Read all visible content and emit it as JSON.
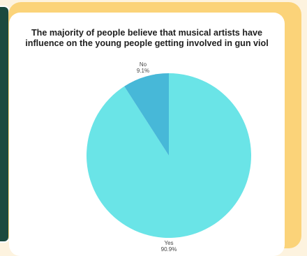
{
  "colors": {
    "page_background": "#fdf3df",
    "frame": "#fbd379",
    "side_panel": "#1b4a3e",
    "card": "#ffffff",
    "yes_slice": "#6ae4e7",
    "no_slice": "#47b8d8",
    "title_text": "#1e1e1e",
    "label_text": "#444444"
  },
  "chart_data": {
    "type": "pie",
    "title_lines": [
      "The majority of people believe that musical artists have",
      "influence on the young people getting involved in gun viol"
    ],
    "slices": [
      {
        "name": "Yes",
        "value": 90.9,
        "label": "90.9%",
        "color": "#6ae4e7"
      },
      {
        "name": "No",
        "value": 9.1,
        "label": "9.1%",
        "color": "#47b8d8"
      }
    ],
    "start": "12 o'clock",
    "direction": "clockwise"
  }
}
